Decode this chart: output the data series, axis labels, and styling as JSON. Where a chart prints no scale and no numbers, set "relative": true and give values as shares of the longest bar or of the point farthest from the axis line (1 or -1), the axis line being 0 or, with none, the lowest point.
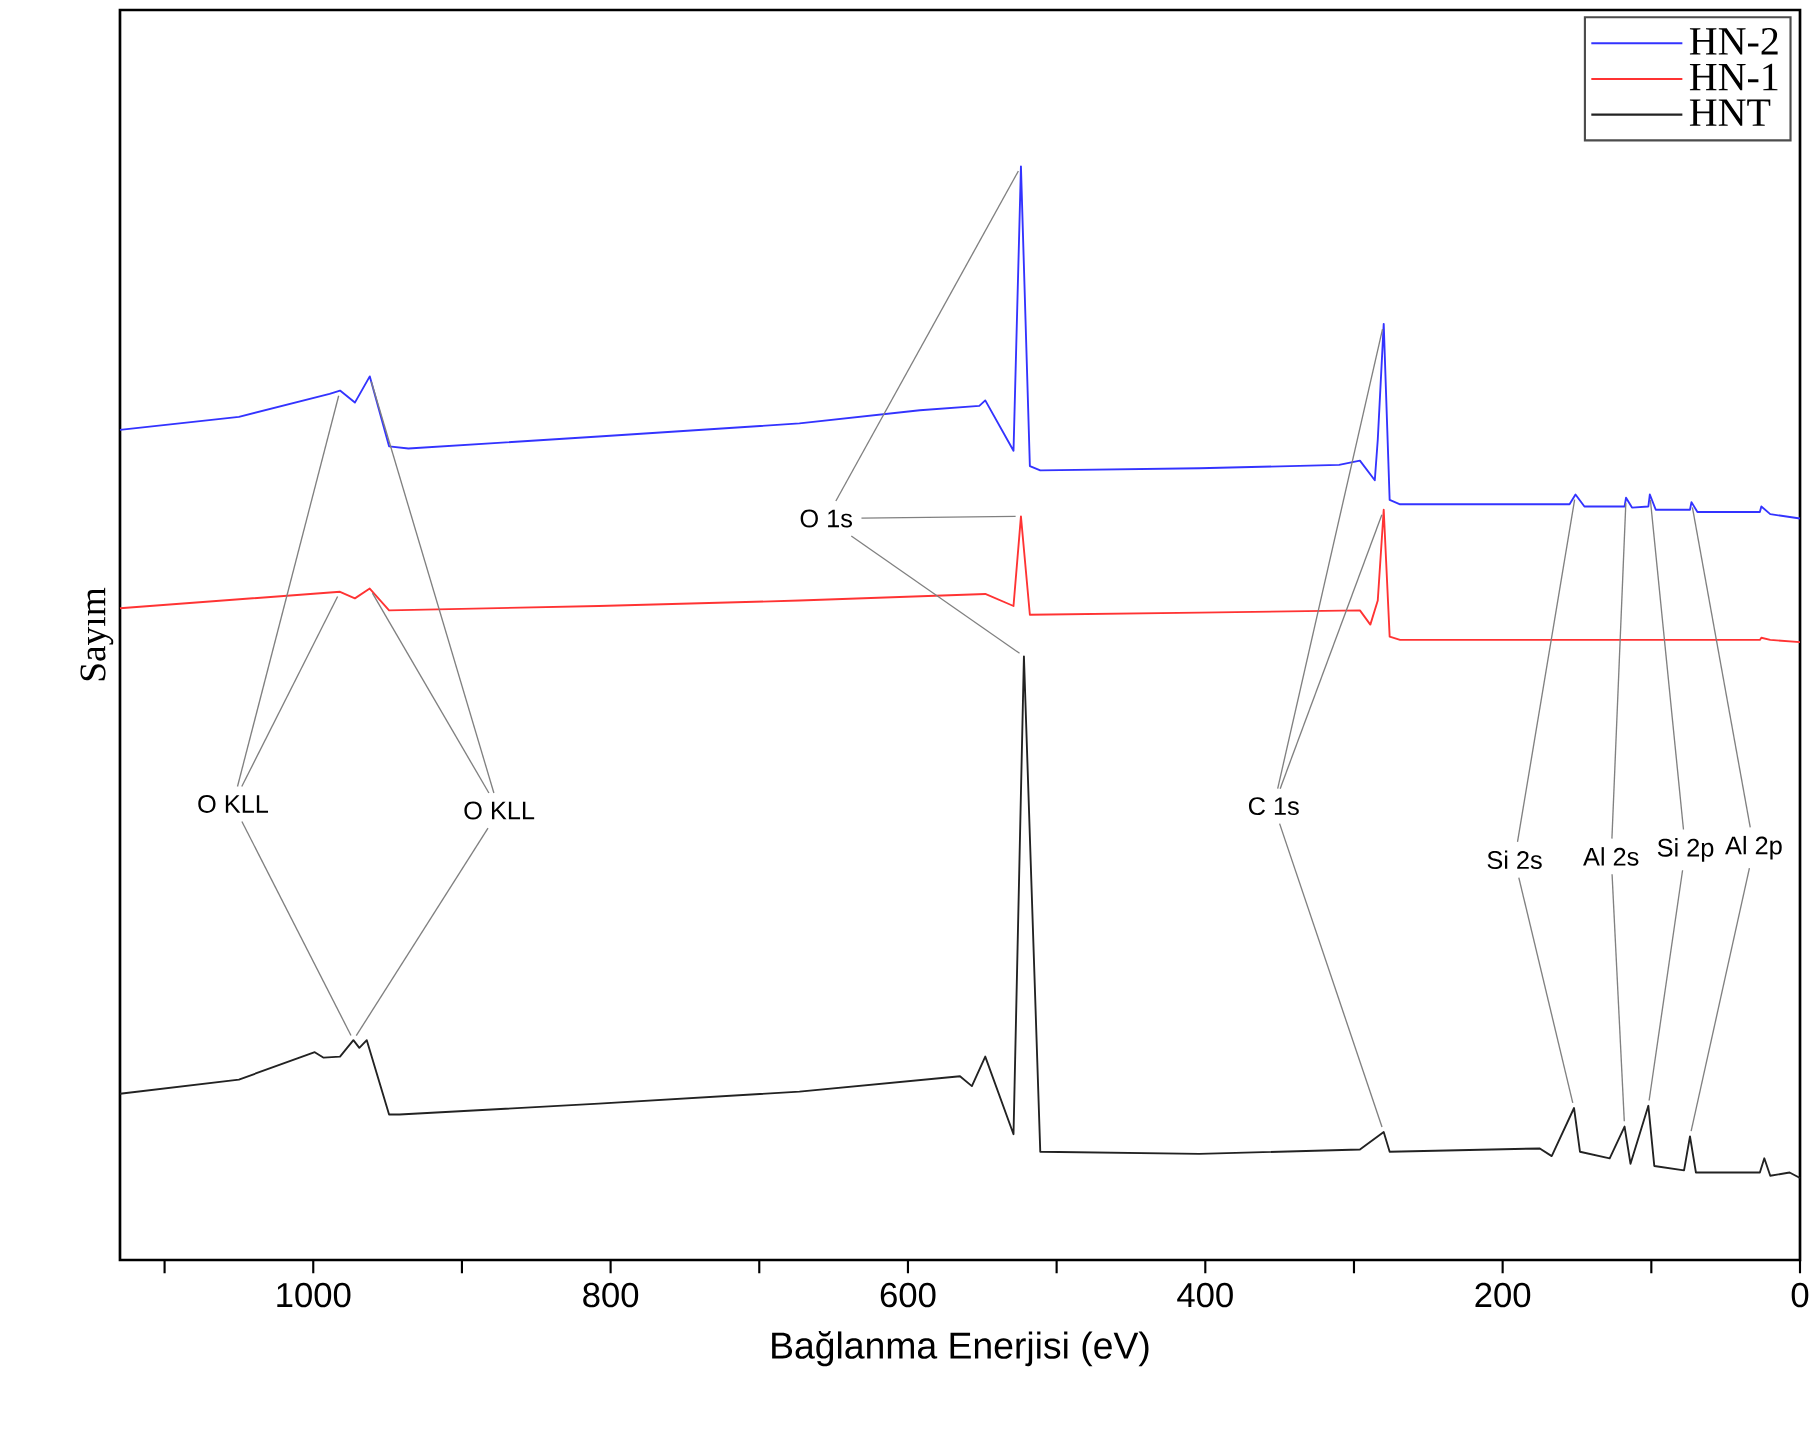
{
  "chart_data": {
    "type": "line",
    "relative": true,
    "xlabel": "Bağlanma Enerjisi (eV)",
    "ylabel": "Sayım",
    "xlim": [
      1130,
      0
    ],
    "xticks": [
      {
        "value": 1100,
        "label": null
      },
      1000,
      {
        "value": 900,
        "label": null
      },
      800,
      {
        "value": 700,
        "label": null
      },
      600,
      {
        "value": 500,
        "label": null
      },
      400,
      {
        "value": 300,
        "label": null
      },
      200,
      {
        "value": 100,
        "label": null
      },
      0
    ],
    "legend": "top right",
    "series": [
      {
        "name": "HN-2",
        "color": "#3333ff",
        "x": [
          1130,
          1050,
          989,
          982,
          972,
          962,
          949,
          936,
          808,
          673,
          592,
          552,
          548,
          529,
          524,
          518,
          511,
          404,
          310,
          296,
          286,
          284,
          280,
          276,
          269,
          155,
          151,
          145,
          118,
          117,
          113,
          102,
          101,
          97,
          74,
          73,
          69,
          27,
          26,
          20,
          0
        ],
        "values": [
          0.759,
          0.771,
          0.792,
          0.795,
          0.784,
          0.808,
          0.744,
          0.742,
          0.753,
          0.765,
          0.777,
          0.781,
          0.786,
          0.74,
          1.0,
          0.726,
          0.722,
          0.724,
          0.727,
          0.731,
          0.713,
          0.75,
          0.856,
          0.695,
          0.691,
          0.691,
          0.7,
          0.689,
          0.689,
          0.697,
          0.688,
          0.689,
          0.7,
          0.686,
          0.686,
          0.693,
          0.684,
          0.684,
          0.689,
          0.682,
          0.678
        ]
      },
      {
        "name": "HN-1",
        "color": "#ff3333",
        "x": [
          1130,
          982,
          972,
          962,
          949,
          808,
          673,
          548,
          529,
          524,
          518,
          404,
          296,
          289,
          284,
          280,
          276,
          269,
          27,
          26,
          20,
          0
        ],
        "values": [
          0.596,
          0.611,
          0.605,
          0.614,
          0.594,
          0.598,
          0.603,
          0.609,
          0.598,
          0.68,
          0.59,
          0.592,
          0.594,
          0.581,
          0.603,
          0.686,
          0.57,
          0.567,
          0.567,
          0.569,
          0.567,
          0.565
        ]
      },
      {
        "name": "HNT",
        "color": "#222222",
        "x": [
          1130,
          1050,
          999,
          993,
          982,
          973,
          969,
          964,
          949,
          942,
          808,
          673,
          565,
          557,
          548,
          529,
          522,
          511,
          404,
          296,
          280,
          276,
          175,
          167,
          152,
          148,
          128,
          118,
          114,
          102,
          98,
          78,
          74,
          70,
          27,
          24,
          20,
          7,
          0
        ],
        "values": [
          0.152,
          0.165,
          0.19,
          0.185,
          0.186,
          0.201,
          0.194,
          0.201,
          0.133,
          0.133,
          0.143,
          0.154,
          0.168,
          0.159,
          0.186,
          0.115,
          0.552,
          0.099,
          0.097,
          0.101,
          0.117,
          0.099,
          0.102,
          0.095,
          0.139,
          0.099,
          0.093,
          0.122,
          0.088,
          0.141,
          0.086,
          0.082,
          0.113,
          0.08,
          0.08,
          0.093,
          0.077,
          0.08,
          0.075
        ]
      }
    ],
    "annotations": [
      "O KLL",
      "O KLL",
      "O 1s",
      "C 1s",
      "Si 2s",
      "Al 2s",
      "Si 2p",
      "Al 2p"
    ]
  }
}
